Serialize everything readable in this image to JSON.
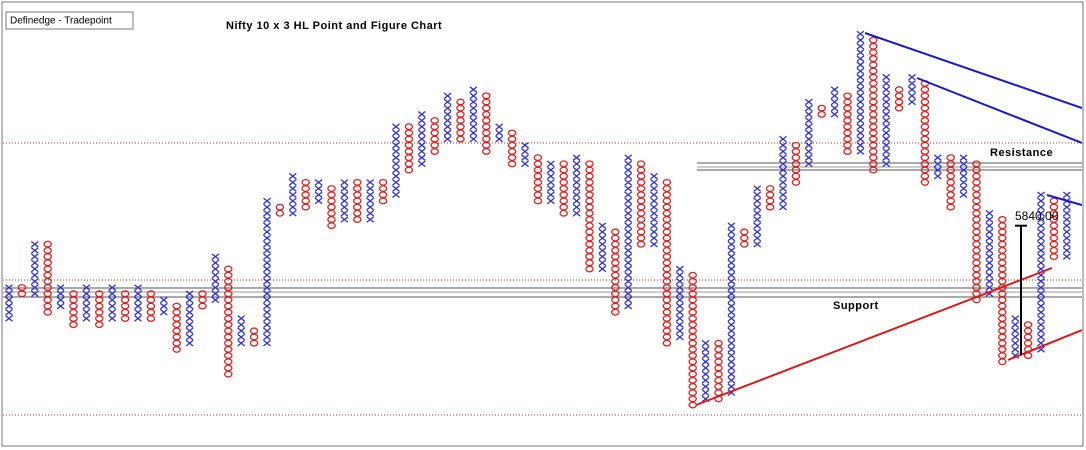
{
  "chart_data": {
    "type": "point-and-figure",
    "title": "Nifty 10 x 3 HL Point and Figure Chart",
    "source": "Definedge - Tradepoint",
    "resistance_label": "Resistance",
    "support_label": "Support",
    "price_label": {
      "value": 5840,
      "label": "5840.00"
    },
    "box_size": 10,
    "ylim": [
      5500,
      6200
    ],
    "x_color": "#3030d8",
    "o_color": "#e02020",
    "columns": [
      {
        "kind": "X",
        "high": 5740,
        "low": 5690
      },
      {
        "kind": "O",
        "high": 5740,
        "low": 5730
      },
      {
        "kind": "X",
        "high": 5810,
        "low": 5730
      },
      {
        "kind": "O",
        "high": 5810,
        "low": 5700
      },
      {
        "kind": "X",
        "high": 5740,
        "low": 5710
      },
      {
        "kind": "O",
        "high": 5730,
        "low": 5680
      },
      {
        "kind": "X",
        "high": 5740,
        "low": 5690
      },
      {
        "kind": "O",
        "high": 5730,
        "low": 5680
      },
      {
        "kind": "X",
        "high": 5740,
        "low": 5690
      },
      {
        "kind": "O",
        "high": 5730,
        "low": 5690
      },
      {
        "kind": "X",
        "high": 5740,
        "low": 5690
      },
      {
        "kind": "O",
        "high": 5730,
        "low": 5690
      },
      {
        "kind": "X",
        "high": 5720,
        "low": 5700
      },
      {
        "kind": "O",
        "high": 5710,
        "low": 5640
      },
      {
        "kind": "X",
        "high": 5730,
        "low": 5650
      },
      {
        "kind": "O",
        "high": 5730,
        "low": 5710
      },
      {
        "kind": "X",
        "high": 5790,
        "low": 5720
      },
      {
        "kind": "O",
        "high": 5770,
        "low": 5600
      },
      {
        "kind": "X",
        "high": 5690,
        "low": 5650
      },
      {
        "kind": "O",
        "high": 5670,
        "low": 5650
      },
      {
        "kind": "X",
        "high": 5880,
        "low": 5650
      },
      {
        "kind": "O",
        "high": 5870,
        "low": 5860
      },
      {
        "kind": "X",
        "high": 5920,
        "low": 5860
      },
      {
        "kind": "O",
        "high": 5910,
        "low": 5870
      },
      {
        "kind": "X",
        "high": 5910,
        "low": 5880
      },
      {
        "kind": "O",
        "high": 5900,
        "low": 5840
      },
      {
        "kind": "X",
        "high": 5910,
        "low": 5850
      },
      {
        "kind": "O",
        "high": 5910,
        "low": 5850
      },
      {
        "kind": "X",
        "high": 5910,
        "low": 5850
      },
      {
        "kind": "O",
        "high": 5910,
        "low": 5880
      },
      {
        "kind": "X",
        "high": 6000,
        "low": 5890
      },
      {
        "kind": "O",
        "high": 6000,
        "low": 5930
      },
      {
        "kind": "X",
        "high": 6020,
        "low": 5940
      },
      {
        "kind": "O",
        "high": 6010,
        "low": 5960
      },
      {
        "kind": "X",
        "high": 6050,
        "low": 5980
      },
      {
        "kind": "O",
        "high": 6040,
        "low": 5980
      },
      {
        "kind": "X",
        "high": 6060,
        "low": 5980
      },
      {
        "kind": "O",
        "high": 6050,
        "low": 5960
      },
      {
        "kind": "X",
        "high": 6000,
        "low": 5980
      },
      {
        "kind": "O",
        "high": 5990,
        "low": 5940
      },
      {
        "kind": "X",
        "high": 5970,
        "low": 5940
      },
      {
        "kind": "O",
        "high": 5950,
        "low": 5880
      },
      {
        "kind": "X",
        "high": 5940,
        "low": 5880
      },
      {
        "kind": "O",
        "high": 5940,
        "low": 5860
      },
      {
        "kind": "X",
        "high": 5950,
        "low": 5860
      },
      {
        "kind": "O",
        "high": 5940,
        "low": 5770
      },
      {
        "kind": "X",
        "high": 5840,
        "low": 5770
      },
      {
        "kind": "O",
        "high": 5830,
        "low": 5700
      },
      {
        "kind": "X",
        "high": 5950,
        "low": 5710
      },
      {
        "kind": "O",
        "high": 5940,
        "low": 5810
      },
      {
        "kind": "X",
        "high": 5920,
        "low": 5810
      },
      {
        "kind": "O",
        "high": 5910,
        "low": 5650
      },
      {
        "kind": "X",
        "high": 5770,
        "low": 5660
      },
      {
        "kind": "O",
        "high": 5760,
        "low": 5550
      },
      {
        "kind": "X",
        "high": 5650,
        "low": 5560
      },
      {
        "kind": "O",
        "high": 5650,
        "low": 5560
      },
      {
        "kind": "X",
        "high": 5840,
        "low": 5570
      },
      {
        "kind": "O",
        "high": 5830,
        "low": 5810
      },
      {
        "kind": "X",
        "high": 5900,
        "low": 5810
      },
      {
        "kind": "O",
        "high": 5900,
        "low": 5870
      },
      {
        "kind": "X",
        "high": 5980,
        "low": 5870
      },
      {
        "kind": "O",
        "high": 5970,
        "low": 5910
      },
      {
        "kind": "X",
        "high": 6040,
        "low": 5940
      },
      {
        "kind": "O",
        "high": 6030,
        "low": 6020
      },
      {
        "kind": "X",
        "high": 6060,
        "low": 6020
      },
      {
        "kind": "O",
        "high": 6050,
        "low": 5960
      },
      {
        "kind": "X",
        "high": 6150,
        "low": 5960
      },
      {
        "kind": "O",
        "high": 6140,
        "low": 5930
      },
      {
        "kind": "X",
        "high": 6080,
        "low": 5940
      },
      {
        "kind": "O",
        "high": 6060,
        "low": 6030
      },
      {
        "kind": "X",
        "high": 6080,
        "low": 6040
      },
      {
        "kind": "O",
        "high": 6070,
        "low": 5910
      },
      {
        "kind": "X",
        "high": 5950,
        "low": 5920
      },
      {
        "kind": "O",
        "high": 5950,
        "low": 5870
      },
      {
        "kind": "X",
        "high": 5950,
        "low": 5890
      },
      {
        "kind": "O",
        "high": 5940,
        "low": 5720
      },
      {
        "kind": "X",
        "high": 5860,
        "low": 5730
      },
      {
        "kind": "O",
        "high": 5850,
        "low": 5620
      },
      {
        "kind": "X",
        "high": 5690,
        "low": 5630
      },
      {
        "kind": "O",
        "high": 5680,
        "low": 5630
      },
      {
        "kind": "X",
        "high": 5890,
        "low": 5640
      },
      {
        "kind": "O",
        "high": 5880,
        "low": 5790
      },
      {
        "kind": "X",
        "high": 5890,
        "low": 5790
      }
    ]
  }
}
